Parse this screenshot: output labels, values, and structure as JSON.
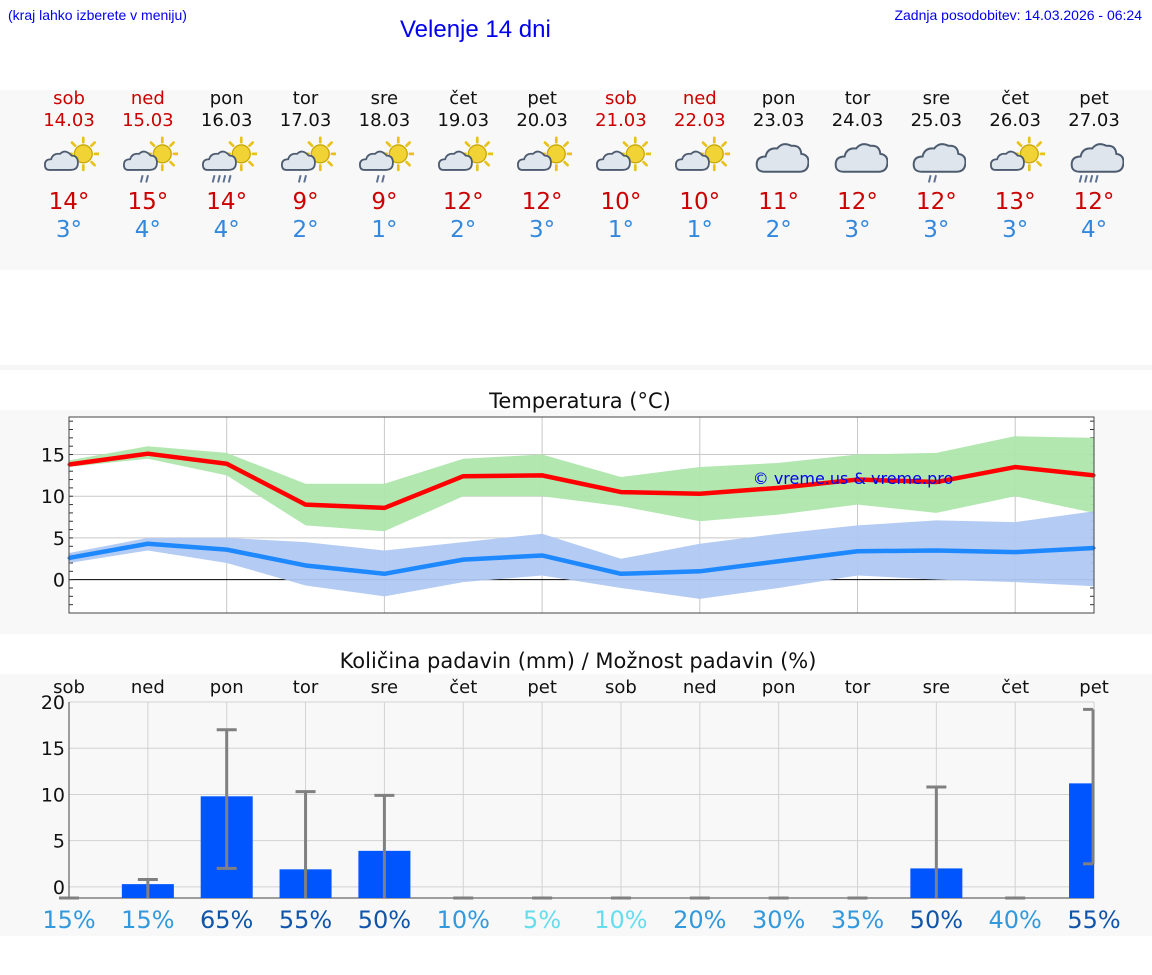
{
  "header": {
    "hint": "(kraj lahko izberete v meniju)",
    "title": "Velenje 14 dni",
    "updated": "Zadnja posodobitev: 14.03.2026 - 06:24"
  },
  "days": [
    {
      "name": "sob",
      "date": "14.03",
      "icon": "sun-cloud-icon",
      "tmax": "14°",
      "tmin": "3°",
      "weekend": true
    },
    {
      "name": "ned",
      "date": "15.03",
      "icon": "sun-cloud-rain-icon",
      "tmax": "15°",
      "tmin": "4°",
      "weekend": true
    },
    {
      "name": "pon",
      "date": "16.03",
      "icon": "sun-cloud-heavy-rain-icon",
      "tmax": "14°",
      "tmin": "4°",
      "weekend": false
    },
    {
      "name": "tor",
      "date": "17.03",
      "icon": "sun-cloud-rain-icon",
      "tmax": "9°",
      "tmin": "2°",
      "weekend": false
    },
    {
      "name": "sre",
      "date": "18.03",
      "icon": "sun-cloud-rain-icon",
      "tmax": "9°",
      "tmin": "1°",
      "weekend": false
    },
    {
      "name": "čet",
      "date": "19.03",
      "icon": "sun-cloud-icon",
      "tmax": "12°",
      "tmin": "2°",
      "weekend": false
    },
    {
      "name": "pet",
      "date": "20.03",
      "icon": "sun-cloud-icon",
      "tmax": "12°",
      "tmin": "3°",
      "weekend": false
    },
    {
      "name": "sob",
      "date": "21.03",
      "icon": "sun-cloud-icon",
      "tmax": "10°",
      "tmin": "1°",
      "weekend": true
    },
    {
      "name": "ned",
      "date": "22.03",
      "icon": "sun-cloud-icon",
      "tmax": "10°",
      "tmin": "1°",
      "weekend": true
    },
    {
      "name": "pon",
      "date": "23.03",
      "icon": "cloud-icon",
      "tmax": "11°",
      "tmin": "2°",
      "weekend": false
    },
    {
      "name": "tor",
      "date": "24.03",
      "icon": "cloud-icon",
      "tmax": "12°",
      "tmin": "3°",
      "weekend": false
    },
    {
      "name": "sre",
      "date": "25.03",
      "icon": "cloud-rain-icon",
      "tmax": "12°",
      "tmin": "3°",
      "weekend": false
    },
    {
      "name": "čet",
      "date": "26.03",
      "icon": "sun-cloud-icon",
      "tmax": "13°",
      "tmin": "3°",
      "weekend": false
    },
    {
      "name": "pet",
      "date": "27.03",
      "icon": "cloud-heavy-rain-icon",
      "tmax": "12°",
      "tmin": "4°",
      "weekend": false
    }
  ],
  "colors": {
    "max_line": "#ff0000",
    "max_band": "#aee6ac",
    "min_line": "#1e88ff",
    "min_band": "#b0c8f2",
    "bar": "#0055ff",
    "error": "#808080",
    "weekend": "#cc0000",
    "link": "#0000ee"
  },
  "chart_data": [
    {
      "type": "line",
      "title": "Temperatura (°C)",
      "watermark": "© vreme.us & vreme.pro",
      "x": [
        0,
        1,
        2,
        3,
        4,
        5,
        6,
        7,
        8,
        9,
        10,
        11,
        12,
        13
      ],
      "ylim": [
        -4,
        19.5
      ],
      "yticks": [
        0,
        5,
        10,
        15
      ],
      "series": [
        {
          "name": "max",
          "values": [
            13.8,
            15.1,
            13.9,
            9.0,
            8.6,
            12.4,
            12.5,
            10.5,
            10.3,
            11.0,
            12.0,
            11.7,
            13.5,
            12.5
          ],
          "band_low": [
            13.5,
            14.5,
            12.5,
            6.5,
            5.8,
            10.0,
            10.0,
            8.8,
            7.0,
            7.8,
            9.0,
            8.0,
            10.0,
            8.0
          ],
          "band_high": [
            14.3,
            16.0,
            15.2,
            11.5,
            11.5,
            14.5,
            15.0,
            12.3,
            13.5,
            14.0,
            15.0,
            15.2,
            17.2,
            17.0
          ]
        },
        {
          "name": "min",
          "values": [
            2.6,
            4.3,
            3.6,
            1.7,
            0.7,
            2.4,
            2.9,
            0.7,
            1.0,
            2.2,
            3.4,
            3.5,
            3.3,
            3.8
          ],
          "band_low": [
            2.0,
            3.5,
            2.0,
            -0.7,
            -2.0,
            -0.3,
            0.5,
            -1.0,
            -2.3,
            -1.0,
            0.5,
            0.0,
            -0.3,
            -0.8
          ],
          "band_high": [
            3.2,
            5.0,
            5.0,
            4.5,
            3.5,
            4.5,
            5.5,
            2.5,
            4.3,
            5.5,
            6.5,
            7.1,
            6.9,
            8.2
          ]
        }
      ]
    },
    {
      "type": "bar",
      "title": "Količina padavin (mm) / Možnost padavin (%)",
      "categories": [
        "sob",
        "ned",
        "pon",
        "tor",
        "sre",
        "čet",
        "pet",
        "sob",
        "ned",
        "pon",
        "tor",
        "sre",
        "čet",
        "pet"
      ],
      "values": [
        0,
        0.3,
        9.8,
        1.9,
        3.9,
        0,
        0,
        0,
        0,
        0,
        0,
        2.0,
        0,
        11.2
      ],
      "error_high": [
        0,
        0.8,
        17.0,
        10.3,
        9.9,
        0,
        0,
        0,
        0,
        0,
        0,
        10.8,
        0,
        19.2
      ],
      "error_low": [
        0,
        0,
        2.0,
        0,
        0,
        0,
        0,
        0,
        0,
        0,
        0,
        0,
        0,
        2.5
      ],
      "ylim": [
        -1.2,
        20
      ],
      "yticks": [
        0,
        5,
        10,
        15,
        20
      ],
      "probability": [
        "15%",
        "15%",
        "65%",
        "55%",
        "50%",
        "10%",
        "5%",
        "10%",
        "20%",
        "30%",
        "35%",
        "50%",
        "40%",
        "55%"
      ],
      "probability_colors": [
        "#3399dd",
        "#3399dd",
        "#1155aa",
        "#1155aa",
        "#1155aa",
        "#3399dd",
        "#66ddee",
        "#66ddee",
        "#3399dd",
        "#3399dd",
        "#3399dd",
        "#1155aa",
        "#3399dd",
        "#1155aa"
      ]
    }
  ]
}
